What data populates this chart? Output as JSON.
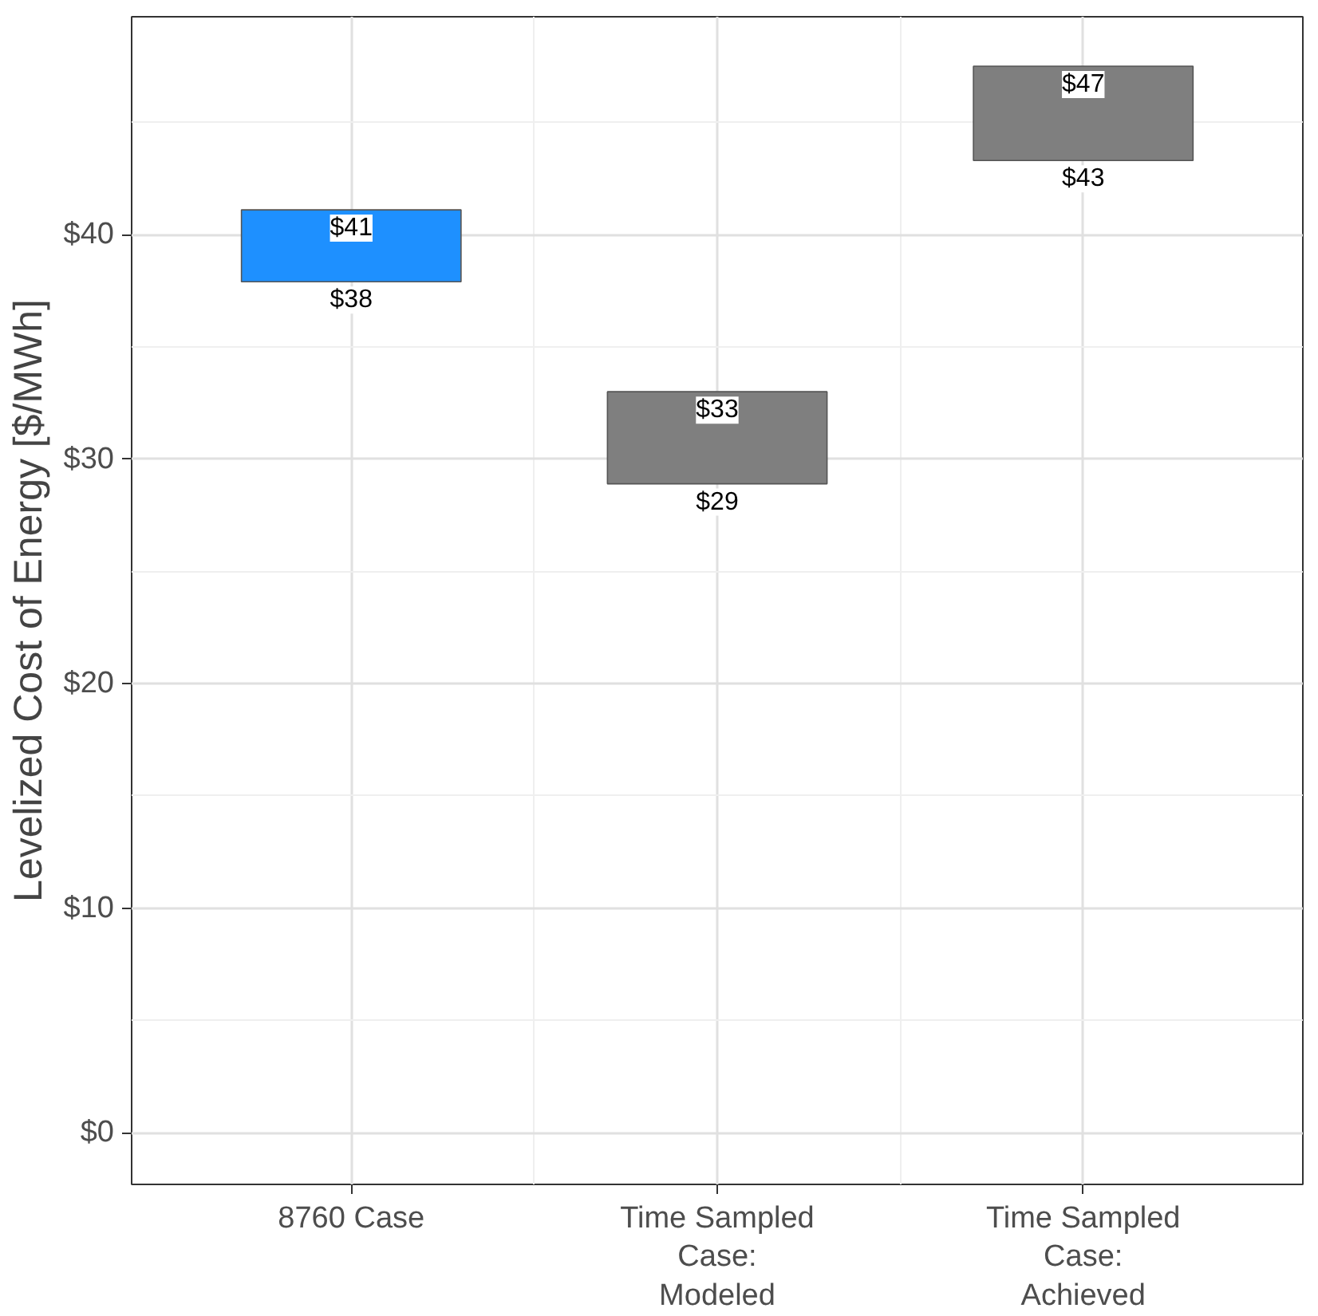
{
  "chart_data": {
    "type": "bar",
    "ylabel": "Levelized Cost of Energy [$/MWh]",
    "categories": [
      "8760 Case",
      "Time Sampled\nCase:\nModeled",
      "Time Sampled\nCase:\nAchieved"
    ],
    "base": [
      37.9,
      28.9,
      43.3
    ],
    "values": [
      3.2,
      4.1,
      4.2
    ],
    "colors": [
      "#1e90ff",
      "#7f7f7f",
      "#7f7f7f"
    ],
    "ylim": [
      -2.3,
      49.7
    ],
    "yticks": [
      {
        "value": 0,
        "label": "$0"
      },
      {
        "value": 10,
        "label": "$10"
      },
      {
        "value": 20,
        "label": "$20"
      },
      {
        "value": 30,
        "label": "$30"
      },
      {
        "value": 40,
        "label": "$40"
      }
    ],
    "grid": true,
    "annotations": [
      {
        "text": "$41",
        "x": "8760 Case",
        "y": 41.1
      },
      {
        "text": "$38",
        "x": "8760 Case",
        "y": 37.9
      },
      {
        "text": "$33",
        "x": "Time Sampled\nCase:\nModeled",
        "y": 33.0
      },
      {
        "text": "$29",
        "x": "Time Sampled\nCase:\nModeled",
        "y": 28.9
      },
      {
        "text": "$47",
        "x": "Time Sampled\nCase:\nAchieved",
        "y": 47.5
      },
      {
        "text": "$43",
        "x": "Time Sampled\nCase:\nAchieved",
        "y": 43.3
      }
    ]
  }
}
